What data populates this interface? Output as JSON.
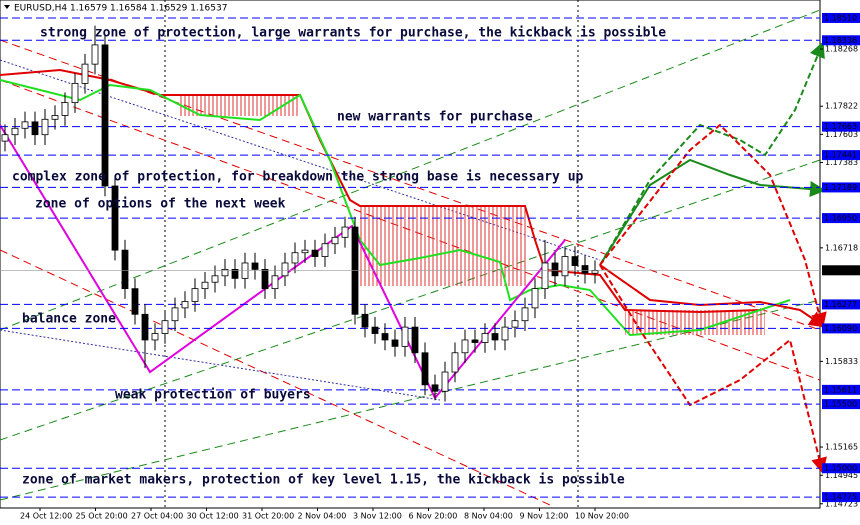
{
  "chart_data": {
    "type": "candlestick",
    "header": "EURUSD,H4  1.16579 1.16584 1.16529 1.16537",
    "annotations": [
      "strong zone of protection, large warrants for purchase, the kickback is possible",
      "new warrants for purchase",
      "complex zone of protection, for breakdown the strong base is necessary up",
      "zone of options of the next week",
      "balance zone",
      "weak protection of buyers",
      "zone of market makers, protection of key level 1.15, the kickback is possible"
    ],
    "x_labels": [
      "24 Oct 12:00",
      "25 Oct 20:00",
      "27 Oct 04:00",
      "30 Oct 12:00",
      "31 Oct 20:00",
      "2 Nov 04:00",
      "3 Nov 12:00",
      "6 Nov 20:00",
      "8 Nov 04:00",
      "9 Nov 12:00",
      "10 Nov 20:00"
    ],
    "ylim": [
      1.1469,
      1.1865
    ],
    "yticks": [
      1.18268,
      1.17822,
      1.17603,
      1.17383,
      1.16718,
      1.15833,
      1.15165,
      1.14945,
      1.14723
    ],
    "levels": [
      {
        "value": 1.1851,
        "label": "1.18510"
      },
      1.18336,
      1.17663,
      1.17441,
      1.17189,
      {
        "value": 1.1695,
        "label": "1.16950"
      },
      1.16277,
      {
        "value": 1.1609,
        "label": "1.16090"
      },
      1.15611,
      {
        "value": 1.155,
        "label": "1.15500"
      },
      {
        "value": 1.15,
        "label": "1.15000"
      },
      1.14775
    ],
    "level_color": "#0000ff",
    "current_price": 1.16543,
    "open": [
      1.1755,
      1.176,
      1.1765,
      1.177,
      1.176,
      1.1772,
      1.1775,
      1.1785,
      1.18,
      1.1815,
      1.183,
      1.172,
      1.167,
      1.164,
      1.162,
      1.16,
      1.1605,
      1.1615,
      1.1625,
      1.163,
      1.164,
      1.1645,
      1.165,
      1.1655,
      1.1648,
      1.166,
      1.1655,
      1.164,
      1.165,
      1.166,
      1.1668,
      1.167,
      1.1665,
      1.1675,
      1.168,
      1.1688,
      1.162,
      1.161,
      1.1605,
      1.16,
      1.1595,
      1.161,
      1.159,
      1.1565,
      1.156,
      1.1575,
      1.159,
      1.16,
      1.1598,
      1.1605,
      1.16,
      1.161,
      1.1615,
      1.1625,
      1.164,
      1.166,
      1.165,
      1.1665,
      1.1658,
      1.1652
    ],
    "high": [
      1.1768,
      1.1773,
      1.1778,
      1.1778,
      1.178,
      1.1783,
      1.1793,
      1.1808,
      1.1823,
      1.1845,
      1.1838,
      1.1728,
      1.1678,
      1.1648,
      1.1628,
      1.1613,
      1.1623,
      1.1633,
      1.1638,
      1.1648,
      1.1653,
      1.1658,
      1.1663,
      1.1663,
      1.1668,
      1.1668,
      1.1663,
      1.1658,
      1.1668,
      1.1676,
      1.1678,
      1.1678,
      1.1683,
      1.1688,
      1.1696,
      1.1696,
      1.1628,
      1.1618,
      1.1613,
      1.1608,
      1.1618,
      1.1618,
      1.1598,
      1.1573,
      1.1583,
      1.1598,
      1.1608,
      1.1608,
      1.1613,
      1.1613,
      1.1618,
      1.1623,
      1.1633,
      1.1648,
      1.1678,
      1.1668,
      1.1673,
      1.1673,
      1.1666,
      1.1662
    ],
    "low": [
      1.1747,
      1.1752,
      1.1757,
      1.1752,
      1.1752,
      1.1764,
      1.1767,
      1.1777,
      1.1792,
      1.1807,
      1.1712,
      1.1662,
      1.1632,
      1.1612,
      1.1578,
      1.1592,
      1.1597,
      1.1607,
      1.1617,
      1.1622,
      1.1632,
      1.1637,
      1.1642,
      1.164,
      1.164,
      1.1647,
      1.1632,
      1.1632,
      1.1642,
      1.1652,
      1.166,
      1.1657,
      1.1657,
      1.1667,
      1.1672,
      1.1612,
      1.1602,
      1.1597,
      1.1592,
      1.1587,
      1.1587,
      1.1582,
      1.1557,
      1.1553,
      1.1552,
      1.1567,
      1.1582,
      1.159,
      1.159,
      1.1592,
      1.1592,
      1.1602,
      1.1607,
      1.1617,
      1.1632,
      1.1642,
      1.1642,
      1.165,
      1.1644,
      1.1644
    ],
    "close": [
      1.176,
      1.1765,
      1.177,
      1.176,
      1.1772,
      1.1775,
      1.1785,
      1.18,
      1.1815,
      1.183,
      1.172,
      1.167,
      1.164,
      1.162,
      1.16,
      1.1605,
      1.1615,
      1.1625,
      1.163,
      1.164,
      1.1645,
      1.165,
      1.1655,
      1.1648,
      1.166,
      1.1655,
      1.164,
      1.165,
      1.166,
      1.1668,
      1.167,
      1.1665,
      1.1675,
      1.168,
      1.1688,
      1.162,
      1.161,
      1.1605,
      1.16,
      1.1595,
      1.161,
      1.159,
      1.1565,
      1.156,
      1.1575,
      1.159,
      1.16,
      1.1598,
      1.1605,
      1.16,
      1.161,
      1.1615,
      1.1625,
      1.164,
      1.166,
      1.165,
      1.1665,
      1.1658,
      1.1652,
      1.1654
    ]
  }
}
